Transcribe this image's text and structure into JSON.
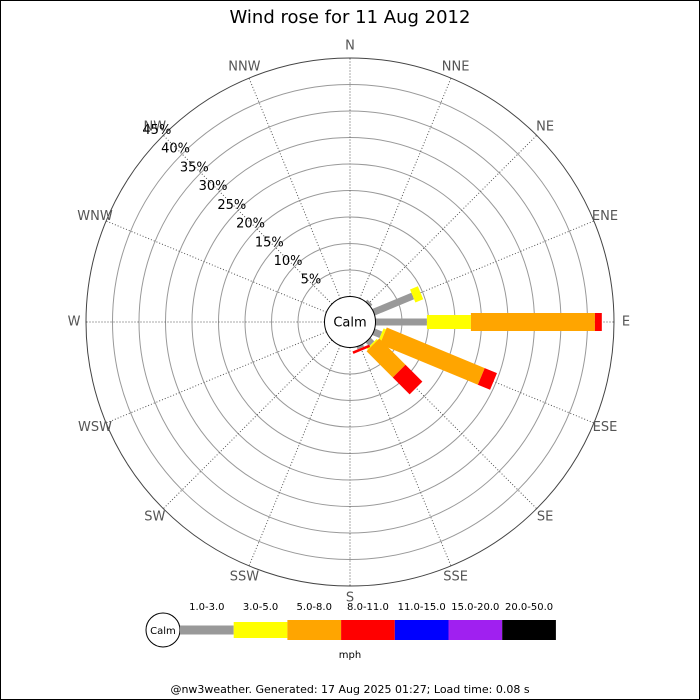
{
  "chart_data": {
    "type": "windrose",
    "title": "Wind rose for 11 Aug 2012",
    "directions": [
      "N",
      "NNE",
      "NE",
      "ENE",
      "E",
      "ESE",
      "SE",
      "SSE",
      "S",
      "SSW",
      "SW",
      "WSW",
      "W",
      "WNW",
      "NW",
      "NNW"
    ],
    "calm_label": "Calm",
    "rlim": [
      0,
      45
    ],
    "rticks": [
      {
        "value": 5,
        "label": "5%"
      },
      {
        "value": 10,
        "label": "10%"
      },
      {
        "value": 15,
        "label": "15%"
      },
      {
        "value": 20,
        "label": "20%"
      },
      {
        "value": 25,
        "label": "25%"
      },
      {
        "value": 30,
        "label": "30%"
      },
      {
        "value": 35,
        "label": "35%"
      },
      {
        "value": 40,
        "label": "40%"
      },
      {
        "value": 45,
        "label": "45%"
      }
    ],
    "series": [
      {
        "name": "1.0-3.0",
        "color": "#999999",
        "values": [
          0,
          0,
          0.5,
          8,
          9.7,
          1.5,
          1,
          0.5,
          0,
          0,
          0,
          0,
          0,
          0,
          0,
          0
        ]
      },
      {
        "name": "3.0-5.0",
        "color": "#ffff00",
        "values": [
          0,
          0,
          0,
          1.6,
          8.3,
          0.5,
          0.3,
          0,
          0,
          0,
          0,
          0,
          0,
          0,
          0,
          0
        ]
      },
      {
        "name": "5.0-8.0",
        "color": "#ffa500",
        "values": [
          0,
          0,
          0,
          0,
          23.4,
          20,
          7,
          0,
          0,
          0,
          0,
          0,
          0,
          0,
          0,
          0
        ]
      },
      {
        "name": "8.0-11.0",
        "color": "#ff0000",
        "values": [
          0,
          0,
          0,
          0,
          1.3,
          2.5,
          4.5,
          0.5,
          0,
          0,
          0,
          0,
          0,
          0,
          0,
          0
        ]
      },
      {
        "name": "11.0-15.0",
        "color": "#0000ff",
        "values": [
          0,
          0,
          0,
          0,
          0,
          0,
          0,
          0,
          0,
          0,
          0,
          0,
          0,
          0,
          0,
          0
        ]
      },
      {
        "name": "15.0-20.0",
        "color": "#a020f0",
        "values": [
          0,
          0,
          0,
          0,
          0,
          0,
          0,
          0,
          0,
          0,
          0,
          0,
          0,
          0,
          0,
          0
        ]
      },
      {
        "name": "20.0-50.0",
        "color": "#000000",
        "values": [
          0,
          0,
          0,
          0,
          0,
          0,
          0,
          0,
          0,
          0,
          0,
          0,
          0,
          0,
          0,
          0
        ]
      }
    ],
    "unit_label": "mph",
    "footer": "@nw3weather. Generated: 17 Aug 2025 01:27; Load time: 0.08 s"
  }
}
